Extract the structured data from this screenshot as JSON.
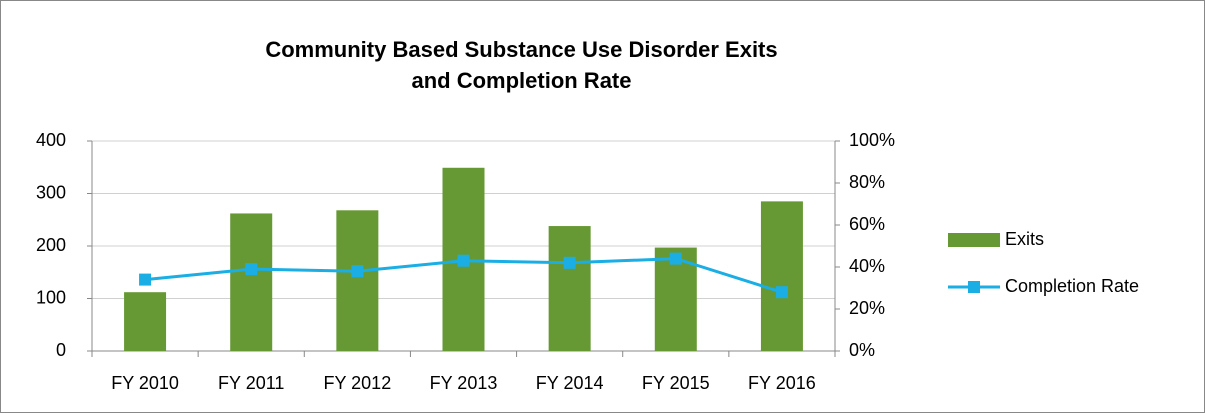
{
  "chart_data": {
    "type": "bar",
    "title": "Community Based Substance Use Disorder Exits and Completion Rate",
    "categories": [
      "FY 2010",
      "FY 2011",
      "FY 2012",
      "FY 2013",
      "FY 2014",
      "FY 2015",
      "FY 2016"
    ],
    "series": [
      {
        "name": "Exits",
        "type": "bar",
        "color": "#669933",
        "values": [
          112,
          262,
          268,
          349,
          238,
          197,
          285
        ]
      },
      {
        "name": "Completion Rate",
        "type": "line",
        "axis": "y2",
        "color": "#1aaee5",
        "values": [
          34,
          39,
          38,
          43,
          42,
          44,
          28
        ]
      }
    ],
    "ylim": [
      0,
      400
    ],
    "yticks": [
      0,
      100,
      200,
      300,
      400
    ],
    "y2lim": [
      0,
      100
    ],
    "y2ticks": [
      {
        "value": 0,
        "label": "0%"
      },
      {
        "value": 20,
        "label": "20%"
      },
      {
        "value": 40,
        "label": "40%"
      },
      {
        "value": 60,
        "label": "60%"
      },
      {
        "value": 80,
        "label": "80%"
      },
      {
        "value": 100,
        "label": "100%"
      }
    ],
    "grid": true,
    "legend": "right"
  }
}
